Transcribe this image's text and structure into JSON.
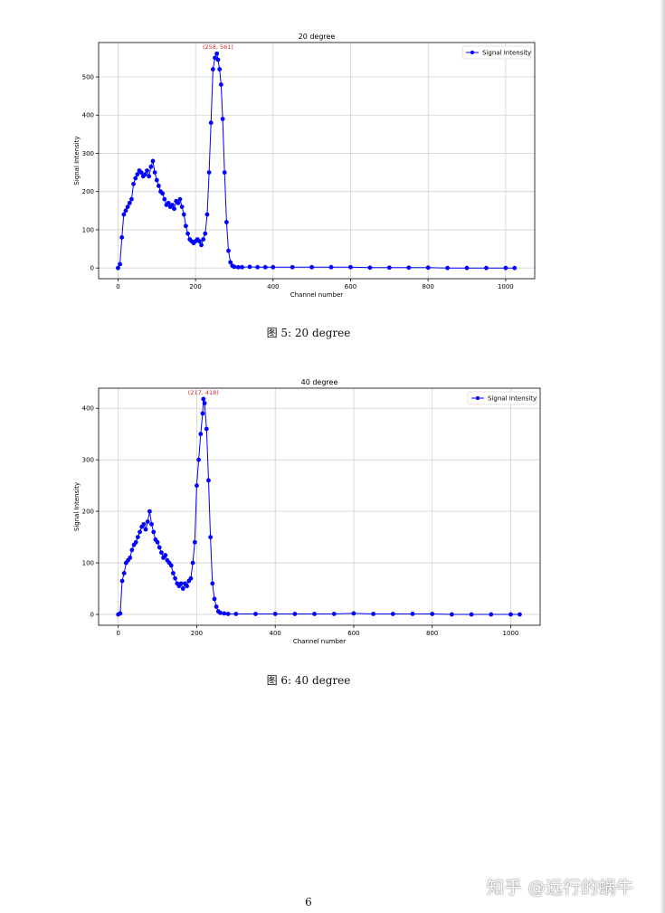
{
  "chart_data": [
    {
      "type": "line",
      "title": "20 degree",
      "xlabel": "Channel number",
      "ylabel": "Signal Intensity",
      "xlim": [
        -50,
        1075
      ],
      "ylim": [
        -28,
        590
      ],
      "xticks": [
        0,
        200,
        400,
        600,
        800,
        1000
      ],
      "yticks": [
        0,
        100,
        200,
        300,
        400,
        500
      ],
      "grid": true,
      "legend": "top-right",
      "series_color": "#0000ff",
      "series": [
        {
          "name": "Signal Intensity",
          "x": [
            0,
            5,
            10,
            15,
            20,
            25,
            30,
            35,
            40,
            45,
            50,
            55,
            60,
            65,
            70,
            75,
            80,
            85,
            90,
            95,
            100,
            105,
            110,
            115,
            120,
            125,
            130,
            135,
            140,
            145,
            150,
            155,
            160,
            165,
            170,
            175,
            180,
            185,
            190,
            195,
            200,
            205,
            210,
            215,
            220,
            225,
            230,
            235,
            240,
            245,
            250,
            255,
            258,
            262,
            266,
            270,
            275,
            280,
            285,
            290,
            295,
            300,
            310,
            320,
            340,
            360,
            380,
            400,
            450,
            500,
            550,
            600,
            650,
            700,
            750,
            800,
            850,
            900,
            950,
            1000,
            1023
          ],
          "y": [
            0,
            10,
            80,
            140,
            150,
            160,
            170,
            180,
            220,
            235,
            245,
            255,
            250,
            240,
            245,
            255,
            240,
            265,
            280,
            250,
            230,
            215,
            200,
            195,
            180,
            165,
            170,
            160,
            165,
            155,
            175,
            170,
            180,
            160,
            140,
            110,
            90,
            75,
            70,
            65,
            70,
            75,
            70,
            60,
            75,
            90,
            140,
            250,
            380,
            520,
            550,
            561,
            545,
            520,
            480,
            390,
            250,
            120,
            45,
            15,
            6,
            3,
            2,
            2,
            3,
            2,
            2,
            2,
            2,
            2,
            2,
            2,
            1,
            1,
            1,
            1,
            0,
            0,
            0,
            0,
            0
          ]
        }
      ],
      "annotations": [
        {
          "text": "(258, 561)",
          "x": 258,
          "y": 561,
          "color": "#d62728"
        }
      ],
      "caption": "图 5:  20 degree"
    },
    {
      "type": "line",
      "title": "40 degree",
      "xlabel": "Channel number",
      "ylabel": "Signal Intensity",
      "xlim": [
        -50,
        1075
      ],
      "ylim": [
        -21,
        439
      ],
      "xticks": [
        0,
        200,
        400,
        600,
        800,
        1000
      ],
      "yticks": [
        0,
        100,
        200,
        300,
        400
      ],
      "grid": true,
      "legend": "top-right",
      "series_color": "#0000ff",
      "series": [
        {
          "name": "Signal Intensity",
          "x": [
            0,
            5,
            10,
            15,
            20,
            25,
            30,
            35,
            40,
            45,
            50,
            55,
            60,
            65,
            70,
            75,
            80,
            85,
            90,
            95,
            100,
            105,
            110,
            115,
            120,
            125,
            130,
            135,
            140,
            145,
            150,
            155,
            160,
            165,
            170,
            175,
            180,
            185,
            190,
            195,
            200,
            205,
            210,
            215,
            217,
            220,
            225,
            230,
            235,
            240,
            245,
            250,
            255,
            260,
            270,
            280,
            300,
            350,
            400,
            450,
            500,
            550,
            600,
            650,
            700,
            750,
            800,
            850,
            900,
            950,
            1000,
            1023
          ],
          "y": [
            0,
            2,
            65,
            80,
            100,
            105,
            110,
            125,
            135,
            140,
            150,
            160,
            170,
            175,
            165,
            180,
            200,
            175,
            160,
            145,
            140,
            130,
            120,
            110,
            115,
            105,
            100,
            95,
            80,
            70,
            60,
            55,
            60,
            50,
            60,
            55,
            65,
            70,
            100,
            140,
            250,
            300,
            350,
            390,
            418,
            410,
            360,
            260,
            150,
            60,
            30,
            15,
            6,
            3,
            2,
            1,
            1,
            1,
            1,
            1,
            1,
            1,
            2,
            1,
            1,
            1,
            1,
            0,
            0,
            0,
            0,
            0
          ]
        }
      ],
      "annotations": [
        {
          "text": "(217, 418)",
          "x": 217,
          "y": 418,
          "color": "#d62728"
        }
      ],
      "caption": "图 6:  40 degree"
    }
  ],
  "page_number": "6",
  "watermark": "知乎 @远行的蜗牛"
}
